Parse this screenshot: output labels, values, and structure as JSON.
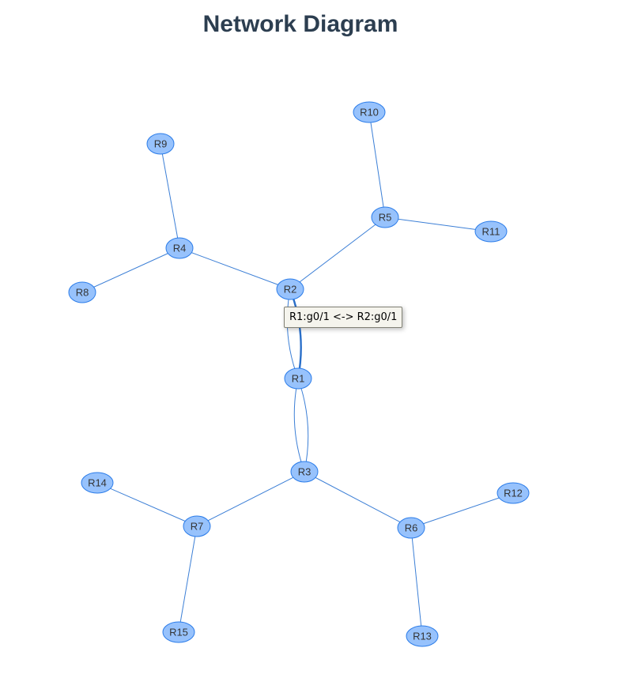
{
  "title": "Network Diagram",
  "colors": {
    "node_fill": "#97c2fc",
    "node_border": "#2b7ce9",
    "edge": "#3c7fd6",
    "title": "#2c3e50"
  },
  "nodes": [
    {
      "id": "R1",
      "label": "R1"
    },
    {
      "id": "R2",
      "label": "R2"
    },
    {
      "id": "R3",
      "label": "R3"
    },
    {
      "id": "R4",
      "label": "R4"
    },
    {
      "id": "R5",
      "label": "R5"
    },
    {
      "id": "R6",
      "label": "R6"
    },
    {
      "id": "R7",
      "label": "R7"
    },
    {
      "id": "R8",
      "label": "R8"
    },
    {
      "id": "R9",
      "label": "R9"
    },
    {
      "id": "R10",
      "label": "R10"
    },
    {
      "id": "R11",
      "label": "R11"
    },
    {
      "id": "R12",
      "label": "R12"
    },
    {
      "id": "R13",
      "label": "R13"
    },
    {
      "id": "R14",
      "label": "R14"
    },
    {
      "id": "R15",
      "label": "R15"
    }
  ],
  "edges": [
    {
      "from": "R1",
      "to": "R2",
      "label": "R1:g0/1 <-> R2:g0/1",
      "highlighted": true
    },
    {
      "from": "R1",
      "to": "R2"
    },
    {
      "from": "R1",
      "to": "R3"
    },
    {
      "from": "R1",
      "to": "R3"
    },
    {
      "from": "R2",
      "to": "R4"
    },
    {
      "from": "R2",
      "to": "R5"
    },
    {
      "from": "R4",
      "to": "R8"
    },
    {
      "from": "R4",
      "to": "R9"
    },
    {
      "from": "R5",
      "to": "R10"
    },
    {
      "from": "R5",
      "to": "R11"
    },
    {
      "from": "R3",
      "to": "R6"
    },
    {
      "from": "R3",
      "to": "R7"
    },
    {
      "from": "R6",
      "to": "R12"
    },
    {
      "from": "R6",
      "to": "R13"
    },
    {
      "from": "R7",
      "to": "R14"
    },
    {
      "from": "R7",
      "to": "R15"
    }
  ],
  "tooltip": {
    "text": "R1:g0/1 <-> R2:g0/1",
    "visible": true
  }
}
